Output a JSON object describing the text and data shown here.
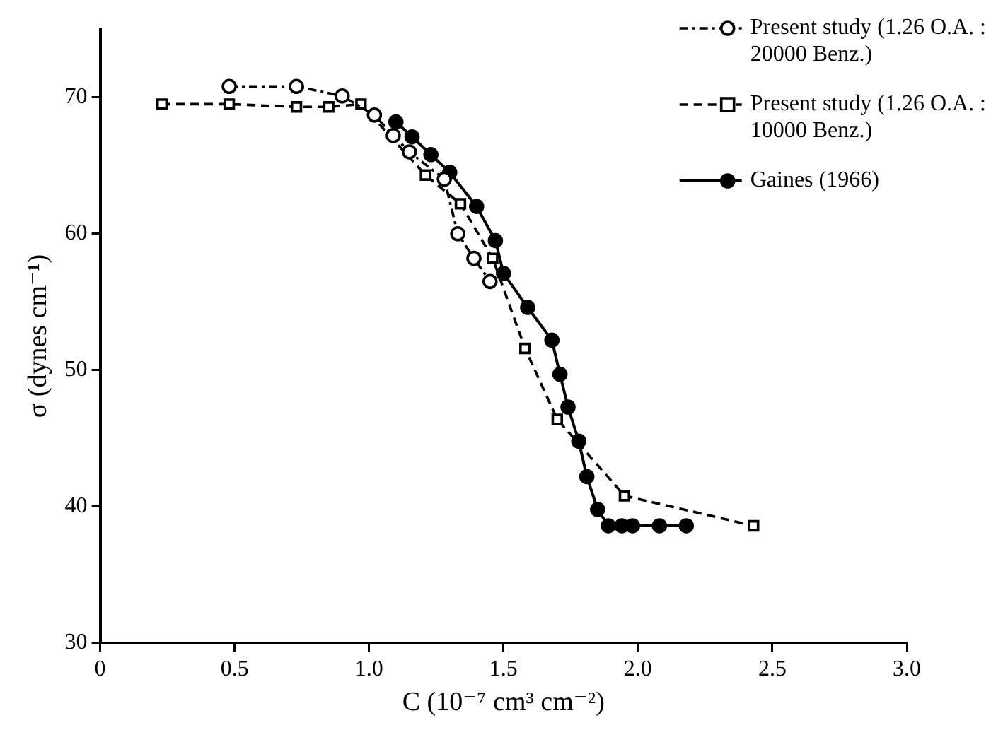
{
  "chart_data": {
    "type": "line",
    "xlabel": "C (10⁻⁷ cm³ cm⁻²)",
    "ylabel": "σ (dynes cm⁻¹)",
    "xlim": [
      0,
      3
    ],
    "ylim": [
      30,
      75
    ],
    "xticks": [
      0,
      0.5,
      {
        "value": 1,
        "label": "1.0"
      },
      1.5,
      {
        "value": 2,
        "label": "2.0"
      },
      2.5,
      {
        "value": 3,
        "label": "3.0"
      }
    ],
    "yticks": [
      30,
      40,
      50,
      60,
      70
    ],
    "grid": false,
    "legend": "top right",
    "series": [
      {
        "name": "Present study (1.26 O.A. : 20000 Benz.)",
        "color": "#000000",
        "marker": "circle",
        "line_style": "dotted",
        "x": [
          0.48,
          0.73,
          0.9,
          1.02,
          1.09,
          1.15,
          1.28,
          1.33,
          1.39,
          1.45
        ],
        "values": [
          70.8,
          70.8,
          70.1,
          68.7,
          67.2,
          66.0,
          64.0,
          60.0,
          58.2,
          56.5
        ]
      },
      {
        "name": "Present study (1.26 O.A. : 10000 Benz.)",
        "color": "#000000",
        "marker": "square",
        "line_style": "dashed",
        "x": [
          0.23,
          0.48,
          0.73,
          0.85,
          0.97,
          1.21,
          1.34,
          1.46,
          1.58,
          1.7,
          1.95,
          2.43
        ],
        "values": [
          69.5,
          69.5,
          69.3,
          69.3,
          69.5,
          64.3,
          62.2,
          58.2,
          51.6,
          46.4,
          40.8,
          38.6
        ]
      },
      {
        "name": "Gaines (1966)",
        "color": "#000000",
        "marker": "circle",
        "line_style": "solid",
        "x": [
          1.1,
          1.16,
          1.23,
          1.3,
          1.4,
          1.47,
          1.5,
          1.59,
          1.68,
          1.71,
          1.74,
          1.78,
          1.81,
          1.85,
          1.89,
          1.94,
          1.98,
          2.08,
          2.18
        ],
        "values": [
          68.2,
          67.1,
          65.8,
          64.5,
          62.0,
          59.5,
          57.1,
          54.6,
          52.2,
          49.7,
          47.3,
          44.8,
          42.2,
          39.8,
          38.6,
          38.6,
          38.6,
          38.6,
          38.6
        ]
      }
    ]
  }
}
